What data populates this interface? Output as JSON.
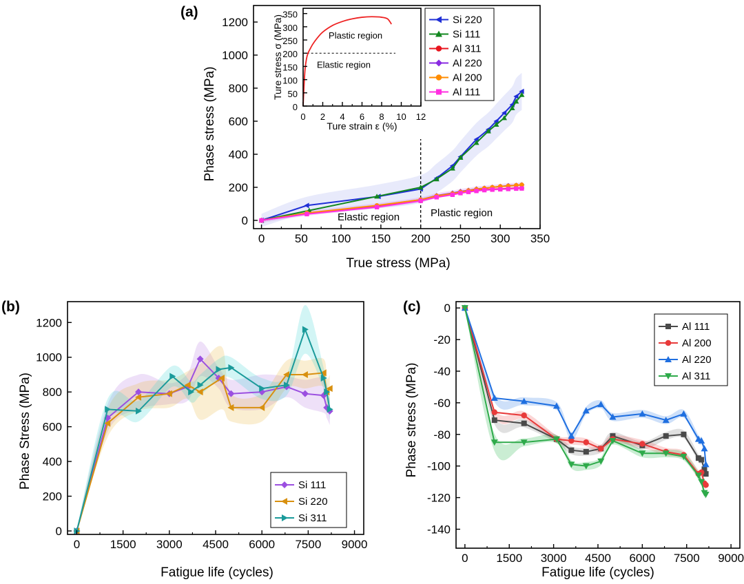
{
  "chart_data": [
    {
      "panel": "(a)",
      "type": "line",
      "xlabel": "True stress (MPa)",
      "ylabel": "Phase stress (MPa)",
      "xlim": [
        -10,
        350
      ],
      "ylim": [
        -50,
        1300
      ],
      "xticks": [
        0,
        50,
        100,
        150,
        200,
        250,
        300,
        350
      ],
      "yticks": [
        0,
        200,
        400,
        600,
        800,
        1000,
        1200
      ],
      "annotations": {
        "elastic": "Elastic region",
        "plastic": "Plastic region",
        "divider_x": 200
      },
      "series": [
        {
          "name": "Si 220",
          "color": "#1f2fd6",
          "marker": "tri-left",
          "x": [
            0,
            57,
            147,
            200,
            220,
            240,
            250,
            270,
            285,
            295,
            305,
            315,
            320,
            327
          ],
          "y": [
            0,
            90,
            145,
            190,
            255,
            330,
            385,
            490,
            550,
            600,
            650,
            700,
            750,
            780
          ]
        },
        {
          "name": "Si 111",
          "color": "#12871f",
          "marker": "tri-up",
          "x": [
            0,
            60,
            145,
            200,
            220,
            240,
            250,
            270,
            285,
            295,
            305,
            315,
            320,
            327
          ],
          "y": [
            0,
            60,
            145,
            200,
            250,
            315,
            380,
            470,
            540,
            580,
            620,
            680,
            720,
            760
          ]
        },
        {
          "name": "Al 311",
          "color": "#e8141e",
          "marker": "circle",
          "x": [
            0,
            57,
            145,
            200,
            220,
            240,
            250,
            260,
            270,
            280,
            290,
            300,
            310,
            320,
            327
          ],
          "y": [
            0,
            40,
            85,
            120,
            145,
            160,
            170,
            175,
            180,
            185,
            188,
            190,
            192,
            195,
            195
          ]
        },
        {
          "name": "Al 220",
          "color": "#8a2be2",
          "marker": "diamond",
          "x": [
            0,
            57,
            145,
            200,
            220,
            240,
            250,
            260,
            270,
            280,
            290,
            300,
            310,
            320,
            327
          ],
          "y": [
            0,
            42,
            88,
            125,
            150,
            165,
            175,
            182,
            190,
            195,
            200,
            205,
            210,
            212,
            215
          ]
        },
        {
          "name": "Al 200",
          "color": "#ff8c00",
          "marker": "circle",
          "x": [
            0,
            57,
            145,
            200,
            220,
            240,
            250,
            260,
            270,
            280,
            290,
            300,
            310,
            320,
            327
          ],
          "y": [
            0,
            45,
            90,
            125,
            148,
            162,
            172,
            180,
            188,
            194,
            200,
            205,
            208,
            212,
            215
          ]
        },
        {
          "name": "Al 111",
          "color": "#ff2fe0",
          "marker": "square",
          "x": [
            0,
            57,
            145,
            200,
            220,
            240,
            250,
            260,
            270,
            280,
            290,
            300,
            310,
            320,
            327
          ],
          "y": [
            0,
            38,
            80,
            118,
            140,
            155,
            165,
            172,
            178,
            183,
            186,
            188,
            190,
            192,
            193
          ]
        }
      ],
      "inset": {
        "xlabel": "Ture strain ε (%)",
        "ylabel": "Ture stress σ (MPa)",
        "xlim": [
          0,
          12
        ],
        "ylim": [
          0,
          370
        ],
        "xticks": [
          0,
          2,
          4,
          6,
          8,
          10,
          12
        ],
        "yticks": [
          0,
          50,
          100,
          150,
          200,
          250,
          300,
          350
        ],
        "plastic_label": "Plastic region",
        "elastic_label": "Elastic region",
        "yield_line": 200,
        "color": "#ee2222",
        "x": [
          0,
          0.1,
          0.2,
          0.35,
          0.5,
          0.7,
          1.0,
          1.5,
          2.0,
          3.0,
          4.0,
          5.0,
          6.0,
          7.0,
          8.0,
          8.6,
          9.0
        ],
        "y": [
          0,
          80,
          140,
          180,
          200,
          215,
          235,
          260,
          280,
          305,
          320,
          330,
          336,
          338,
          336,
          330,
          310
        ]
      }
    },
    {
      "panel": "(b)",
      "type": "line",
      "xlabel": "Fatigue life (cycles)",
      "ylabel": "Phase Stress (MPa)",
      "xlim": [
        -300,
        9300
      ],
      "ylim": [
        -20,
        1320
      ],
      "xticks": [
        0,
        1500,
        3000,
        4500,
        6000,
        7500,
        9000
      ],
      "yticks": [
        0,
        200,
        400,
        600,
        800,
        1000,
        1200
      ],
      "series": [
        {
          "name": "Si 111",
          "color": "#9b4fe0",
          "marker": "diamond",
          "x": [
            0,
            1000,
            2000,
            3000,
            3600,
            4000,
            4600,
            5000,
            6000,
            6800,
            7400,
            8000,
            8100,
            8200
          ],
          "y": [
            0,
            650,
            800,
            790,
            830,
            990,
            880,
            790,
            800,
            830,
            790,
            780,
            710,
            690
          ]
        },
        {
          "name": "Si 220",
          "color": "#d8900f",
          "marker": "tri-left",
          "x": [
            0,
            1000,
            2000,
            3000,
            3600,
            4000,
            4700,
            5000,
            6000,
            6800,
            7400,
            8000,
            8100,
            8200
          ],
          "y": [
            0,
            620,
            770,
            790,
            840,
            800,
            880,
            710,
            710,
            900,
            900,
            910,
            800,
            820
          ]
        },
        {
          "name": "Si 311",
          "color": "#1a9a9a",
          "marker": "tri-right",
          "x": [
            0,
            1000,
            2000,
            3100,
            3700,
            4000,
            4600,
            5000,
            6000,
            6800,
            7400,
            8000,
            8100,
            8200
          ],
          "y": [
            0,
            700,
            690,
            890,
            800,
            840,
            930,
            940,
            820,
            840,
            1160,
            880,
            800,
            700
          ]
        }
      ]
    },
    {
      "panel": "(c)",
      "type": "line",
      "xlabel": "Fatigue life (cycles)",
      "ylabel": "Phase stress (MPa)",
      "xlim": [
        -300,
        9300
      ],
      "ylim": [
        -152,
        4
      ],
      "xticks": [
        0,
        1500,
        3000,
        4500,
        6000,
        7500,
        9000
      ],
      "yticks": [
        0,
        -20,
        -40,
        -60,
        -80,
        -100,
        -120,
        -140
      ],
      "series": [
        {
          "name": "Al 111",
          "color": "#4a4a4a",
          "marker": "square",
          "x": [
            0,
            1000,
            2000,
            3100,
            3600,
            4100,
            4600,
            5000,
            6000,
            6800,
            7400,
            7900,
            8000,
            8100,
            8150
          ],
          "y": [
            0,
            -71,
            -73,
            -83,
            -90,
            -91,
            -89,
            -81,
            -87,
            -81,
            -80,
            -95,
            -96,
            -102,
            -105
          ]
        },
        {
          "name": "Al 200",
          "color": "#e83a3a",
          "marker": "circle",
          "x": [
            0,
            1000,
            2000,
            3100,
            3600,
            4100,
            4600,
            5000,
            6000,
            6800,
            7400,
            7900,
            8000,
            8100,
            8150
          ],
          "y": [
            0,
            -66,
            -68,
            -83,
            -84,
            -85,
            -89,
            -83,
            -86,
            -91,
            -93,
            -105,
            -104,
            -111,
            -112
          ]
        },
        {
          "name": "Al 220",
          "color": "#1f6fe0",
          "marker": "tri-up",
          "x": [
            0,
            1000,
            2000,
            3100,
            3600,
            4100,
            4600,
            5000,
            6000,
            6800,
            7400,
            7900,
            8000,
            8100,
            8150
          ],
          "y": [
            0,
            -57,
            -59,
            -62,
            -81,
            -65,
            -61,
            -69,
            -67,
            -71,
            -67,
            -83,
            -84,
            -89,
            -99
          ]
        },
        {
          "name": "Al 311",
          "color": "#2eaa4a",
          "marker": "tri-down",
          "x": [
            0,
            1000,
            2000,
            3100,
            3600,
            4100,
            4600,
            5000,
            6000,
            6800,
            7400,
            7900,
            8000,
            8100,
            8150
          ],
          "y": [
            0,
            -85,
            -85,
            -83,
            -99,
            -100,
            -97,
            -84,
            -92,
            -92,
            -94,
            -106,
            -110,
            -117,
            -118
          ]
        }
      ]
    }
  ]
}
